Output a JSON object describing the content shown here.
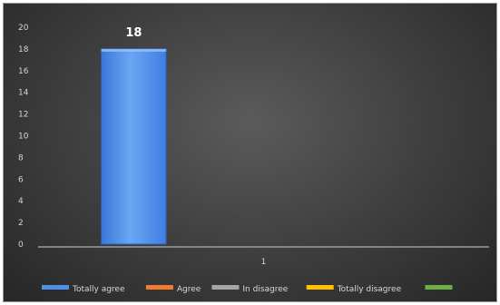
{
  "chart_data": {
    "type": "bar",
    "categories": [
      "1"
    ],
    "series": [
      {
        "name": "Totally agree",
        "values": [
          18
        ],
        "color": "#4f8fe8"
      },
      {
        "name": "Agree",
        "values": [
          0
        ],
        "color": "#ed7d31"
      },
      {
        "name": "In disagree",
        "values": [
          0
        ],
        "color": "#a5a5a5"
      },
      {
        "name": "Totally disagree",
        "values": [
          0
        ],
        "color": "#ffc000"
      },
      {
        "name": "",
        "values": [
          0
        ],
        "color": "#70ad47"
      }
    ],
    "data_labels": [
      "18"
    ],
    "y_ticks": [
      "0",
      "2",
      "4",
      "6",
      "8",
      "10",
      "12",
      "14",
      "16",
      "18",
      "20"
    ],
    "ylim": [
      0,
      20
    ],
    "title": "",
    "xlabel": "",
    "ylabel": "",
    "grid": false,
    "legend_position": "bottom"
  }
}
